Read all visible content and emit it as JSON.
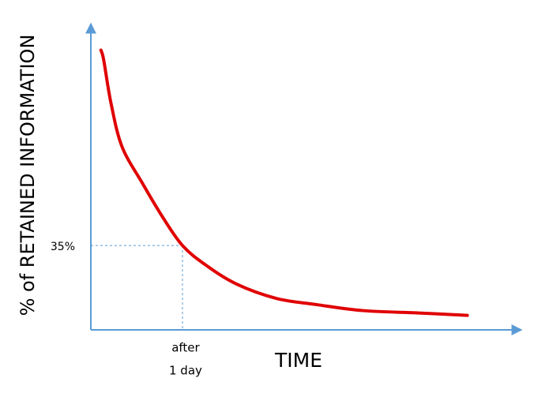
{
  "chart_data": {
    "type": "line",
    "x_label": "TIME",
    "y_label": "% of RETAINED INFORMATION",
    "x": [
      0.11,
      0.14,
      0.22,
      0.34,
      0.56,
      0.78,
      1,
      1.25,
      1.59,
      2.03,
      2.46,
      2.97,
      3.58,
      4.11
    ],
    "series": [
      {
        "color": "#e00000",
        "values": [
          116,
          112,
          94,
          76,
          61,
          47,
          35,
          27,
          19,
          13,
          10.5,
          8,
          7,
          6
        ]
      }
    ],
    "xlim": [
      0,
      4.7
    ],
    "ylim": [
      0,
      127
    ],
    "axis_color": "#5b9bd5",
    "marker": {
      "x": 1,
      "y": 35,
      "y_label": "35%",
      "x_label_lines": [
        "after",
        "1 day"
      ]
    }
  }
}
